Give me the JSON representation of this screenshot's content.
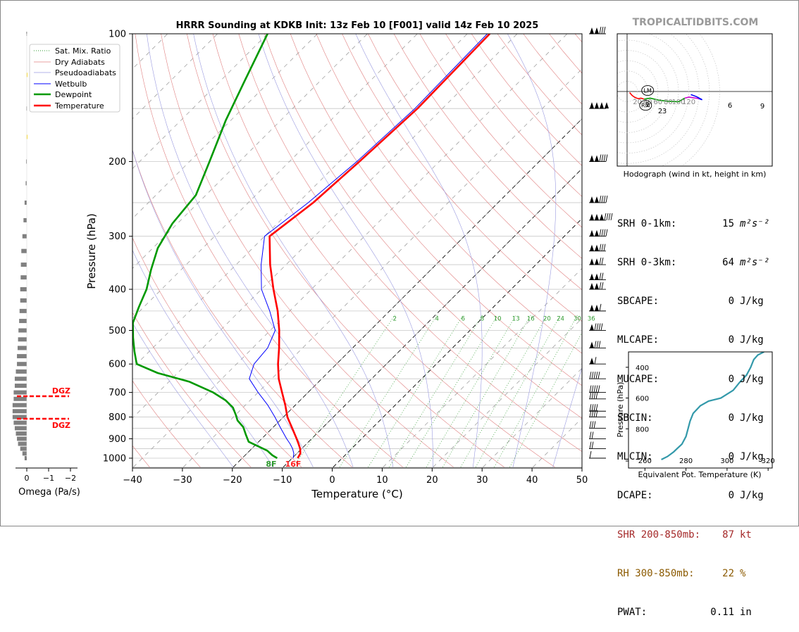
{
  "title": "HRRR Sounding at KDKB Init: 13z Feb 10 [F001] valid 14z Feb 10 2025",
  "watermark": "TROPICALTIDBITS.COM",
  "skewt": {
    "xlabel": "Temperature (°C)",
    "ylabel": "Pressure (hPa)",
    "pressure_ticks": [
      "100",
      "200",
      "300",
      "400",
      "500",
      "600",
      "700",
      "800",
      "900",
      "1000"
    ],
    "temp_ticks": [
      "−40",
      "−30",
      "−20",
      "−10",
      "0",
      "10",
      "20",
      "30",
      "40",
      "50"
    ],
    "mixing_ratio_labels": [
      "2",
      "4",
      "6",
      "8",
      "10",
      "13",
      "16",
      "20",
      "24",
      "30",
      "36"
    ],
    "surface_dewpoint_label": "8F",
    "surface_temp_label": "16F",
    "legend": [
      "Sat. Mix. Ratio",
      "Dry Adiabats",
      "Pseudoadiabats",
      "Wetbulb",
      "Dewpoint",
      "Temperature"
    ]
  },
  "omega": {
    "xlabel": "Omega (Pa/s)",
    "ticks": [
      "0",
      "−1",
      "−2"
    ],
    "dgz_label": "DGZ"
  },
  "hodograph": {
    "caption": "Hodograph (wind in kt, height in km)",
    "ring_labels": [
      "20",
      "40",
      "60",
      "80",
      "100",
      "120"
    ],
    "height_labels": [
      "1",
      "2",
      "3",
      "6",
      "9"
    ],
    "storm_motion_labels": [
      "LM",
      "RM"
    ]
  },
  "indices": [
    {
      "label": "SRH 0-1km:",
      "value": "15",
      "unit": "m²s⁻²",
      "color": "#000000"
    },
    {
      "label": "SRH 0-3km:",
      "value": "64",
      "unit": "m²s⁻²",
      "color": "#000000"
    },
    {
      "label": "SBCAPE:",
      "value": "0",
      "unit": "J/kg",
      "color": "#000000"
    },
    {
      "label": "MLCAPE:",
      "value": "0",
      "unit": "J/kg",
      "color": "#000000"
    },
    {
      "label": "MUCAPE:",
      "value": "0",
      "unit": "J/kg",
      "color": "#000000"
    },
    {
      "label": "SBCIN:",
      "value": "0",
      "unit": "J/kg",
      "color": "#000000"
    },
    {
      "label": "MLCIN:",
      "value": "0",
      "unit": "J/kg",
      "color": "#000000"
    },
    {
      "label": "DCAPE:",
      "value": "0",
      "unit": "J/kg",
      "color": "#000000"
    },
    {
      "label": "SHR 200-850mb:",
      "value": "87",
      "unit": "kt",
      "color": "#a52a2a"
    },
    {
      "label": "RH 300-850mb:",
      "value": "22",
      "unit": "%",
      "color": "#8b5a00"
    },
    {
      "label": "PWAT:",
      "value": "0.11",
      "unit": "in",
      "color": "#000000"
    }
  ],
  "theta_e_plot": {
    "xlabel": "Equivalent Pot. Temperature (K)",
    "ylabel": "Pressure (hPa)",
    "xticks": [
      "260",
      "280",
      "300",
      "320"
    ],
    "yticks": [
      "400",
      "600",
      "800"
    ]
  },
  "chart_data": [
    {
      "type": "line",
      "title": "HRRR Sounding at KDKB Init: 13z Feb 10 [F001] valid 14z Feb 10 2025",
      "xlabel": "Temperature (°C)",
      "ylabel": "Pressure (hPa)",
      "xlim": [
        -40,
        50
      ],
      "ylim": [
        1050,
        100
      ],
      "y_scale": "log",
      "skew": "45 degrees",
      "grid": true,
      "legend_position": "upper-left",
      "series": [
        {
          "name": "Temperature",
          "color": "#ff0000",
          "pressure": [
            1000,
            975,
            950,
            925,
            900,
            850,
            800,
            750,
            700,
            650,
            600,
            550,
            500,
            450,
            400,
            350,
            300,
            250,
            200,
            150,
            100
          ],
          "values": [
            -8.9,
            -9.3,
            -10.3,
            -11.6,
            -13.0,
            -16.0,
            -19.2,
            -22.0,
            -25.2,
            -28.6,
            -31.7,
            -34.7,
            -38.2,
            -42.4,
            -47.6,
            -53.2,
            -59.0,
            -57.0,
            -56.0,
            -55.0,
            -55.5
          ]
        },
        {
          "name": "Dewpoint",
          "color": "#009900",
          "pressure": [
            1000,
            985,
            960,
            935,
            915,
            880,
            845,
            815,
            790,
            760,
            730,
            700,
            660,
            630,
            600,
            560,
            520,
            480,
            440,
            400,
            360,
            320,
            280,
            240,
            200,
            160,
            130,
            100
          ],
          "values": [
            -13.0,
            -14.5,
            -16.5,
            -19.5,
            -22.0,
            -24.0,
            -26.0,
            -28.5,
            -30.0,
            -32.0,
            -35.0,
            -39.0,
            -46.0,
            -54.0,
            -60.0,
            -63.0,
            -66.0,
            -69.0,
            -71.0,
            -73.0,
            -76.0,
            -79.0,
            -81.0,
            -82.0,
            -86.0,
            -91.0,
            -95.0,
            -100.0
          ]
        },
        {
          "name": "Wetbulb",
          "color": "#0000ff",
          "pressure": [
            1000,
            975,
            950,
            925,
            900,
            850,
            800,
            750,
            700,
            650,
            600,
            550,
            500,
            450,
            400,
            350,
            300,
            250,
            200,
            150,
            100
          ],
          "values": [
            -9.8,
            -10.6,
            -11.8,
            -13.3,
            -15.0,
            -18.3,
            -21.7,
            -25.5,
            -30.0,
            -34.5,
            -36.5,
            -37.0,
            -39.0,
            -44.0,
            -50.0,
            -55.0,
            -60.0,
            -58.0,
            -56.5,
            -55.5,
            -56.0
          ]
        }
      ]
    },
    {
      "type": "bar",
      "title": "",
      "xlabel": "Omega (Pa/s)",
      "xlim": [
        0.4,
        -2.2
      ],
      "pressure": [
        1000,
        975,
        950,
        925,
        900,
        875,
        850,
        825,
        800,
        775,
        750,
        725,
        700,
        675,
        650,
        625,
        600,
        575,
        550,
        525,
        500,
        475,
        450,
        425,
        400,
        375,
        350,
        325,
        300,
        275,
        250,
        225,
        200,
        175,
        150,
        125,
        100
      ],
      "values": [
        -0.1,
        -0.2,
        -0.3,
        -0.4,
        -0.45,
        -0.5,
        -0.55,
        -0.6,
        -0.65,
        -0.65,
        -0.65,
        -0.6,
        -0.6,
        -0.55,
        -0.55,
        -0.5,
        -0.45,
        -0.45,
        -0.42,
        -0.4,
        -0.38,
        -0.35,
        -0.33,
        -0.3,
        -0.3,
        -0.28,
        -0.27,
        -0.25,
        -0.2,
        -0.15,
        -0.1,
        -0.05,
        -0.03,
        0.0,
        -0.02,
        0.0,
        -0.02
      ],
      "dgz_pressure_range": [
        820,
        710
      ]
    },
    {
      "type": "line",
      "title": "Hodograph (wind in kt, height in km)",
      "xlim": [
        -10,
        145
      ],
      "ylim": [
        -55,
        55
      ],
      "series": [
        {
          "name": "0-3 km",
          "color": "#ff0000",
          "u": [
            5,
            10,
            16,
            22,
            27,
            33
          ],
          "v": [
            -2,
            -8,
            -12,
            -14,
            -13,
            -15
          ]
        },
        {
          "name": "3-6 km",
          "color": "#009900",
          "u": [
            33,
            45,
            62,
            80,
            100,
            112
          ],
          "v": [
            -15,
            -13,
            -17,
            -19,
            -20,
            -13
          ]
        },
        {
          "name": "6-9 km",
          "color": "#cc00cc",
          "u": [
            112,
            120,
            128,
            134,
            140
          ],
          "v": [
            -13,
            -11,
            -12,
            -13,
            -14
          ]
        },
        {
          "name": "9+ km",
          "color": "#0000ff",
          "u": [
            140,
            146,
            135,
            124
          ],
          "v": [
            -14,
            -16,
            -10,
            -6
          ]
        }
      ],
      "storm_motion": {
        "LM": [
          40,
          2
        ],
        "RM": [
          36,
          -27
        ]
      }
    },
    {
      "type": "line",
      "title": "",
      "xlabel": "Equivalent Pot. Temperature (K)",
      "ylabel": "Pressure (hPa)",
      "xlim": [
        252,
        322
      ],
      "ylim": [
        1000,
        300
      ],
      "grid": false,
      "series": [
        {
          "name": "",
          "color": "#3399aa",
          "pressure": [
            1000,
            980,
            950,
            925,
            900,
            850,
            800,
            750,
            700,
            650,
            620,
            600,
            550,
            500,
            450,
            400,
            350,
            320,
            300
          ],
          "values": [
            268,
            271,
            274,
            276,
            278,
            280,
            281,
            282,
            283.5,
            287,
            291,
            297,
            303,
            306,
            309.5,
            311.5,
            313,
            315,
            318
          ]
        }
      ]
    }
  ]
}
